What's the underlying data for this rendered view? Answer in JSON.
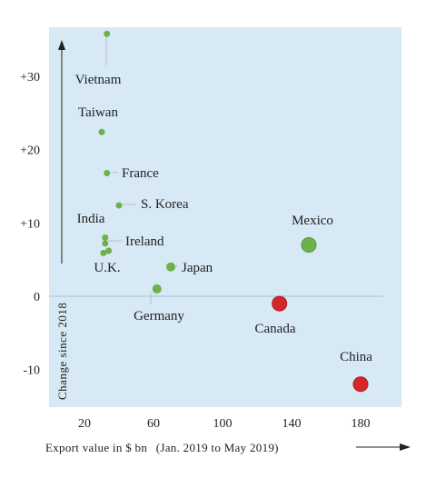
{
  "chart_data": {
    "type": "scatter",
    "xlabel": "Export value in $ bn",
    "xlabel_note": "(Jan. 2019 to May 2019)",
    "ylabel": "Change since 2018",
    "xlim": [
      8,
      195
    ],
    "ylim": [
      -15,
      36
    ],
    "x_ticks": [
      20,
      60,
      100,
      140,
      180
    ],
    "x_tick_labels": [
      "20",
      "60",
      "100",
      "140",
      "180"
    ],
    "y_ticks": [
      30,
      20,
      10,
      0,
      -10
    ],
    "y_tick_labels": [
      "+30",
      "+20",
      "+10",
      "0",
      "-10"
    ],
    "grid": false,
    "colors": {
      "increase": "#6db14b",
      "decrease": "#d62728",
      "background": "#d6e9f4",
      "zero_line": "#a7c4d4"
    },
    "points": [
      {
        "label": "Vietnam",
        "x": 33,
        "y": 35.8,
        "size": "small",
        "color": "increase"
      },
      {
        "label": "Taiwan",
        "x": 30,
        "y": 22.4,
        "size": "small",
        "color": "increase"
      },
      {
        "label": "France",
        "x": 33,
        "y": 16.8,
        "size": "small",
        "color": "increase"
      },
      {
        "label": "S. Korea",
        "x": 40,
        "y": 12.4,
        "size": "small",
        "color": "increase"
      },
      {
        "label": "India",
        "x": 32,
        "y": 8.0,
        "size": "small",
        "color": "increase"
      },
      {
        "label": "Ireland",
        "x": 32,
        "y": 7.2,
        "size": "small",
        "color": "increase"
      },
      {
        "label": "",
        "x": 34,
        "y": 6.2,
        "size": "small",
        "color": "increase"
      },
      {
        "label": "U.K.",
        "x": 31,
        "y": 5.9,
        "size": "small",
        "color": "increase"
      },
      {
        "label": "Japan",
        "x": 70,
        "y": 4.0,
        "size": "medium",
        "color": "increase"
      },
      {
        "label": "Germany",
        "x": 62,
        "y": 1.0,
        "size": "medium",
        "color": "increase"
      },
      {
        "label": "Mexico",
        "x": 150,
        "y": 7.0,
        "size": "large",
        "color": "increase"
      },
      {
        "label": "Canada",
        "x": 133,
        "y": -1.0,
        "size": "large",
        "color": "decrease"
      },
      {
        "label": "China",
        "x": 180,
        "y": -12.0,
        "size": "large",
        "color": "decrease"
      }
    ]
  }
}
